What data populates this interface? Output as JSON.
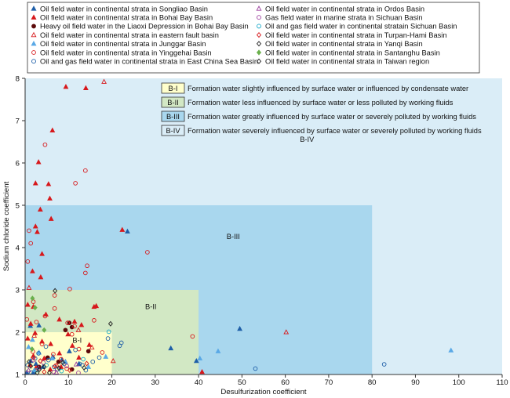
{
  "chart_data": {
    "type": "scatter",
    "xlabel": "Desulfurization coefficient",
    "ylabel": "Sodium chloride coefficient",
    "xlim": [
      0,
      110
    ],
    "ylim": [
      1,
      8
    ],
    "xticks": [
      0,
      10,
      20,
      30,
      40,
      50,
      60,
      70,
      80,
      90,
      100,
      110
    ],
    "yticks": [
      1,
      2,
      3,
      4,
      5,
      6,
      7,
      8
    ],
    "zones": [
      {
        "name": "B-IV",
        "x": [
          0,
          110
        ],
        "y": [
          1,
          8
        ],
        "color": "#daedf7",
        "label_at": [
          65,
          6.5
        ]
      },
      {
        "name": "B-III",
        "x": [
          0,
          80
        ],
        "y": [
          1,
          5
        ],
        "color": "#a9d7ee",
        "label_at": [
          48,
          4.2
        ]
      },
      {
        "name": "B-II",
        "x": [
          0,
          40
        ],
        "y": [
          1,
          3
        ],
        "color": "#d2e8c4",
        "label_at": [
          29,
          2.55
        ]
      },
      {
        "name": "B-I",
        "x": [
          0,
          20
        ],
        "y": [
          1,
          2
        ],
        "color": "#ffffcc",
        "label_at": [
          12,
          1.75
        ]
      }
    ],
    "zone_legend": [
      {
        "code": "B-I",
        "color": "#ffffcc",
        "text": "Formation water slightly influenced by surface water or influenced by condensate water"
      },
      {
        "code": "B-II",
        "color": "#d2e8c4",
        "text": "Formation water less influenced by surface water or less polluted by working fluids"
      },
      {
        "code": "B-III",
        "color": "#a9d7ee",
        "text": "Formation water greatly influenced by surface water or severely polluted by working fluids"
      },
      {
        "code": "B-IV",
        "color": "#daedf7",
        "text": "Formation water severely influenced by surface water or severely polluted by working fluids"
      }
    ],
    "series": [
      {
        "name": "Oil field water in continental strata in Songliao Basin",
        "marker": "triangle",
        "filled": true,
        "color": "#1f5fa8",
        "points": [
          [
            23.6,
            4.38
          ],
          [
            33.6,
            1.62
          ],
          [
            39.5,
            1.32
          ],
          [
            49.5,
            2.08
          ],
          [
            3.2,
            2.16
          ],
          [
            1.2,
            2.15
          ],
          [
            10.2,
            1.55
          ],
          [
            2.5,
            1.25
          ],
          [
            4.1,
            1.18
          ],
          [
            1.3,
            1.32
          ],
          [
            6.4,
            1.42
          ],
          [
            8.5,
            1.35
          ],
          [
            12.4,
            1.25
          ],
          [
            0.4,
            1.05
          ],
          [
            1.9,
            1.05
          ]
        ]
      },
      {
        "name": "Oil field water in continental strata in Bohai Bay Basin",
        "marker": "triangle",
        "filled": true,
        "color": "#d7191c",
        "points": [
          [
            14,
            7.77
          ],
          [
            9.4,
            7.8
          ],
          [
            6.3,
            6.77
          ],
          [
            3.1,
            6.02
          ],
          [
            5.4,
            5.5
          ],
          [
            2.4,
            5.52
          ],
          [
            5.7,
            5.16
          ],
          [
            3.5,
            4.9
          ],
          [
            6,
            4.68
          ],
          [
            2.4,
            4.5
          ],
          [
            2.8,
            4.37
          ],
          [
            22.4,
            4.42
          ],
          [
            3.9,
            3.85
          ],
          [
            1.7,
            3.44
          ],
          [
            3.6,
            3.3
          ],
          [
            15.9,
            2.6
          ],
          [
            16.4,
            2.62
          ],
          [
            0.6,
            2.65
          ],
          [
            1.9,
            2.6
          ],
          [
            4.8,
            2.42
          ],
          [
            7.9,
            2.3
          ],
          [
            11.4,
            2.25
          ],
          [
            13,
            2.17
          ],
          [
            1.3,
            2.2
          ],
          [
            2.3,
            1.98
          ],
          [
            9.9,
            1.95
          ],
          [
            3.9,
            1.78
          ],
          [
            5.9,
            1.72
          ],
          [
            10.9,
            1.68
          ],
          [
            7.9,
            1.5
          ],
          [
            1.9,
            1.44
          ],
          [
            4.4,
            1.38
          ],
          [
            9.3,
            1.3
          ],
          [
            12.4,
            1.4
          ],
          [
            14.8,
            1.7
          ],
          [
            40.8,
            1.06
          ],
          [
            2.5,
            1.16
          ],
          [
            5.8,
            1.12
          ],
          [
            0.6,
            1.85
          ],
          [
            1.1,
            1.22
          ],
          [
            8.3,
            1.18
          ]
        ]
      },
      {
        "name": "Heavy oil field water in the Liaoxi Depression in Bohai Bay Basin",
        "marker": "circle",
        "filled": true,
        "color": "#5c0a0a",
        "points": [
          [
            10.2,
            2.22
          ],
          [
            10.8,
            2.12
          ],
          [
            9.3,
            2.05
          ],
          [
            14.6,
            1.55
          ],
          [
            5.2,
            1.4
          ],
          [
            7.7,
            1.3
          ],
          [
            3.2,
            1.18
          ],
          [
            10.8,
            1.12
          ]
        ]
      },
      {
        "name": "Oil field water in continental strata in eastern fault basin",
        "marker": "triangle",
        "filled": false,
        "color": "#d7191c",
        "points": [
          [
            18.2,
            7.92
          ],
          [
            60.2,
            2.0
          ],
          [
            0.9,
            3.05
          ],
          [
            12.3,
            2.05
          ],
          [
            2.1,
            1.92
          ],
          [
            15.4,
            1.64
          ],
          [
            20.3,
            1.32
          ],
          [
            7.3,
            1.22
          ]
        ]
      },
      {
        "name": "Oil field water in continental strata in Junggar Basin",
        "marker": "triangle",
        "filled": true,
        "color": "#5aa9e6",
        "points": [
          [
            98.2,
            1.57
          ],
          [
            44.5,
            1.55
          ],
          [
            40.3,
            1.38
          ],
          [
            1.7,
            1.82
          ],
          [
            3.2,
            1.52
          ],
          [
            6.3,
            1.38
          ],
          [
            9.3,
            1.3
          ],
          [
            14.6,
            1.18
          ],
          [
            18.6,
            1.42
          ],
          [
            2.1,
            1.1
          ],
          [
            0.8,
            1.65
          ]
        ]
      },
      {
        "name": "Oil field water in continental strata in Yinggehai Basin",
        "marker": "circle",
        "filled": false,
        "color": "#d7191c",
        "points": [
          [
            4.6,
            6.43
          ],
          [
            13.9,
            5.82
          ],
          [
            11.6,
            5.52
          ],
          [
            0.9,
            4.4
          ],
          [
            1.3,
            4.1
          ],
          [
            28.2,
            3.89
          ],
          [
            14.3,
            3.57
          ],
          [
            13.9,
            3.4
          ],
          [
            0.6,
            3.67
          ],
          [
            10.3,
            3.02
          ],
          [
            6.8,
            2.87
          ],
          [
            1.9,
            2.72
          ],
          [
            6.8,
            2.56
          ],
          [
            4.6,
            2.38
          ],
          [
            2.6,
            2.24
          ],
          [
            9.8,
            2.22
          ],
          [
            11.4,
            2.14
          ],
          [
            15.9,
            2.28
          ],
          [
            38.6,
            1.9
          ],
          [
            10.8,
            1.95
          ],
          [
            1.8,
            1.54
          ],
          [
            3.9,
            1.72
          ],
          [
            6.5,
            1.48
          ],
          [
            8.3,
            1.36
          ],
          [
            12.4,
            1.6
          ],
          [
            17.8,
            1.52
          ],
          [
            9.6,
            1.14
          ],
          [
            0.4,
            2.3
          ]
        ]
      },
      {
        "name": "Oil and gas field water in continental strata in East China Sea Basin",
        "marker": "circle",
        "filled": false,
        "color": "#1f5fa8",
        "points": [
          [
            82.8,
            1.24
          ],
          [
            53.1,
            1.14
          ],
          [
            22.2,
            1.75
          ],
          [
            21.8,
            1.68
          ],
          [
            19.1,
            1.85
          ],
          [
            17.1,
            1.4
          ],
          [
            15.6,
            1.3
          ],
          [
            13.2,
            1.22
          ],
          [
            12.6,
            1.25
          ],
          [
            14,
            1.1
          ],
          [
            7.4,
            1.12
          ],
          [
            5.4,
            1.34
          ],
          [
            3.1,
            1.5
          ],
          [
            2.3,
            1.38
          ],
          [
            0.6,
            1.22
          ],
          [
            4.8,
            1.66
          ],
          [
            6.7,
            1.18
          ],
          [
            9,
            1.25
          ],
          [
            11.6,
            1.58
          ],
          [
            1.4,
            1.05
          ]
        ]
      },
      {
        "name": "Oil field water in continental strata in Ordos Basin",
        "marker": "triangle",
        "filled": false,
        "color": "#9b3f9e",
        "points": [
          [
            0.8,
            1.1
          ],
          [
            3.1,
            1.15
          ],
          [
            7.2,
            1.05
          ],
          [
            11.8,
            1.24
          ]
        ]
      },
      {
        "name": "Gas field water in marine strata in Sichuan Basin",
        "marker": "circle",
        "filled": false,
        "color": "#9b3f9e",
        "points": [
          [
            1.9,
            1.34
          ],
          [
            4.2,
            1.28
          ],
          [
            6.6,
            1.06
          ],
          [
            9.6,
            1.2
          ],
          [
            12.3,
            1.04
          ]
        ]
      },
      {
        "name": "Oil and gas field water in continental stratain Sichuan Basin",
        "marker": "circle",
        "filled": false,
        "color": "#15a8c8",
        "points": [
          [
            19.3,
            2.01
          ],
          [
            8.4,
            1.08
          ],
          [
            2.7,
            1.1
          ],
          [
            4.9,
            1.22
          ],
          [
            13.4,
            1.36
          ]
        ]
      },
      {
        "name": "Oil field water in continental strata in Turpan-Hami Basin",
        "marker": "diamond",
        "filled": false,
        "color": "#d7191c",
        "points": [
          [
            1.9,
            1.4
          ],
          [
            3.5,
            1.32
          ],
          [
            6.9,
            1.2
          ],
          [
            10.3,
            1.1
          ],
          [
            14.2,
            1.26
          ],
          [
            4.4,
            1.06
          ]
        ]
      },
      {
        "name": "Oil field water in continental strata in Yanqi Basin",
        "marker": "diamond",
        "filled": false,
        "color": "#222222",
        "points": [
          [
            6.9,
            2.98
          ],
          [
            19.7,
            2.2
          ],
          [
            4.4,
            1.18
          ],
          [
            8.7,
            1.28
          ],
          [
            1.3,
            1.2
          ],
          [
            2.8,
            1.04
          ],
          [
            13.6,
            1.16
          ]
        ]
      },
      {
        "name": "Oil field water in continental strata in Santanghu Basin",
        "marker": "diamond",
        "filled": true,
        "color": "#6ab04c",
        "points": [
          [
            1.7,
            2.8
          ],
          [
            2.3,
            2.58
          ],
          [
            4.4,
            2.05
          ],
          [
            1.6,
            1.6
          ]
        ]
      },
      {
        "name": "Oil field water in continental strata in Taiwan region",
        "marker": "diamond",
        "filled": false,
        "color": "#222222",
        "points": [
          [
            3.3,
            1.12
          ],
          [
            5.6,
            1.04
          ],
          [
            0.9,
            1.3
          ],
          [
            7.8,
            1.15
          ]
        ]
      }
    ]
  }
}
